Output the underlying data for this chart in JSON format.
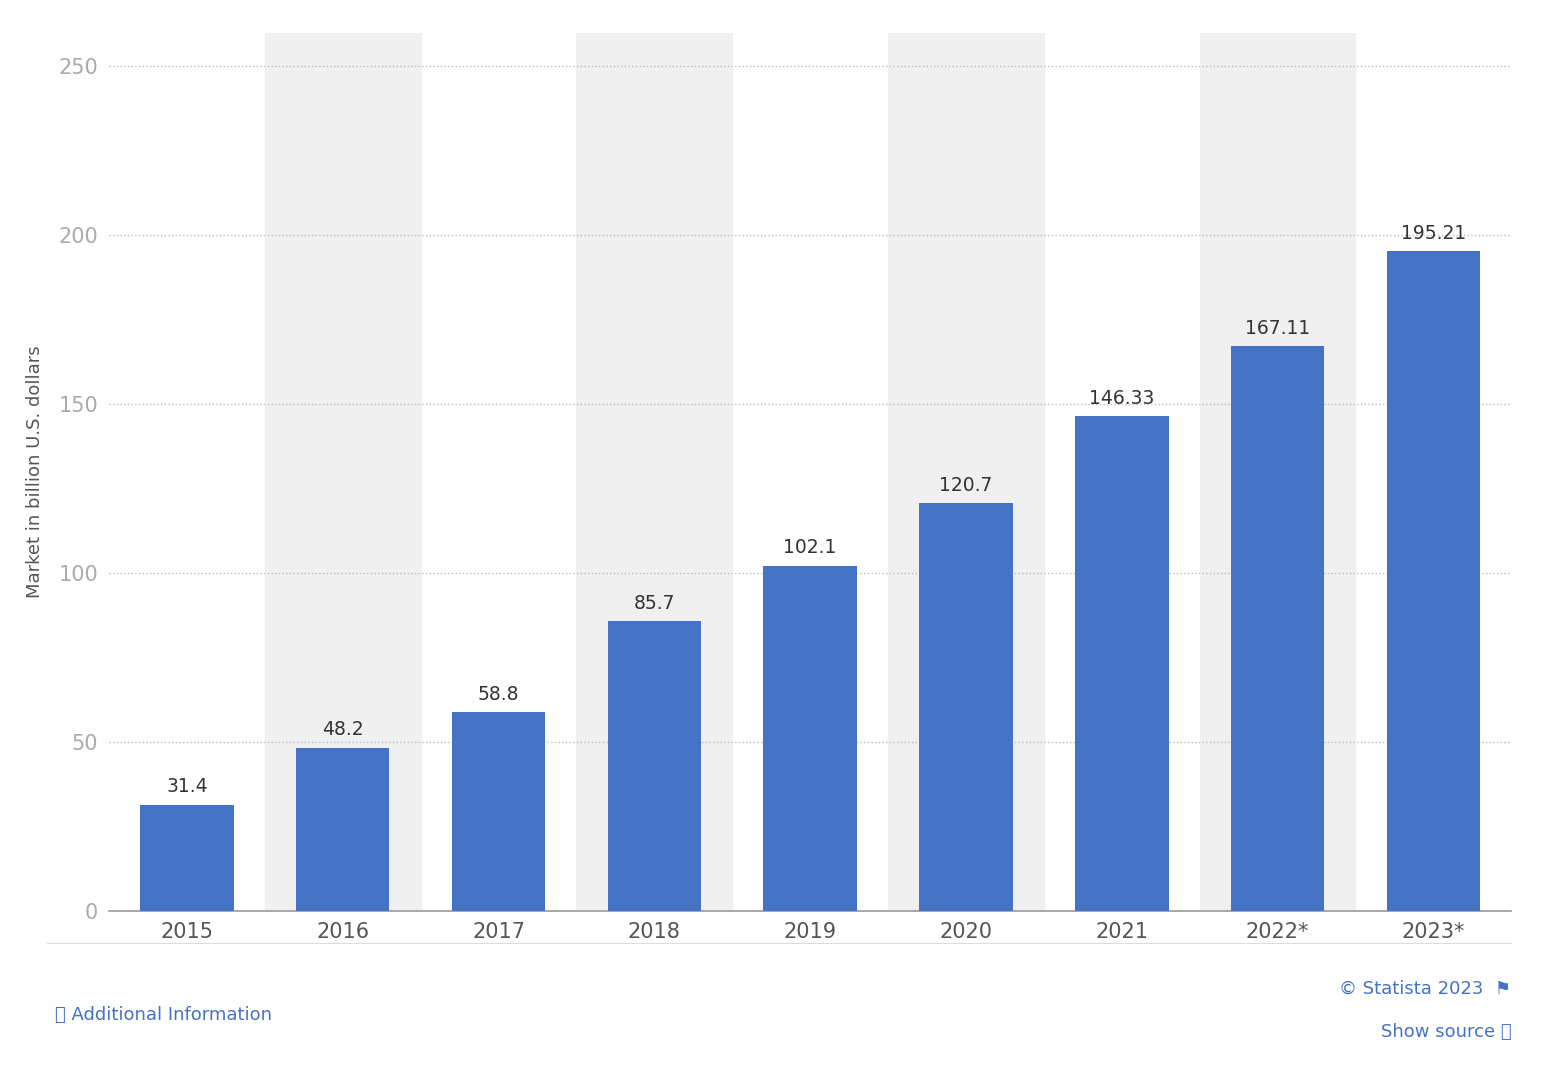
{
  "categories": [
    "2015",
    "2016",
    "2017",
    "2018",
    "2019",
    "2020",
    "2021",
    "2022*",
    "2023*"
  ],
  "values": [
    31.4,
    48.2,
    58.8,
    85.7,
    102.1,
    120.7,
    146.33,
    167.11,
    195.21
  ],
  "bar_color": "#4472C4",
  "ylabel": "Market in billion U.S. dollars",
  "ylim": [
    0,
    260
  ],
  "yticks": [
    0,
    50,
    100,
    150,
    200,
    250
  ],
  "grid_color": "#bbbbbb",
  "bg_color": "#ffffff",
  "stripe_color": "#f0f0f0",
  "tick_fontsize": 15,
  "ylabel_fontsize": 13,
  "value_label_fontsize": 13.5,
  "footer_left": "ⓘ Additional Information",
  "footer_right_top": "© Statista 2023  ⚑",
  "footer_right_bottom": "Show source ⓘ",
  "footer_color": "#4472C4",
  "footer_fontsize": 13,
  "ytick_color": "#aaaaaa",
  "xtick_color": "#555555"
}
